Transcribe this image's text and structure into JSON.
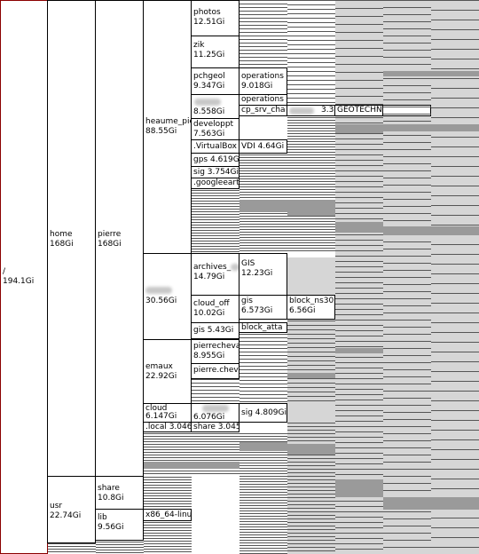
{
  "root": {
    "name": "/",
    "size": "194.1Gi"
  },
  "level1": [
    {
      "name": "home",
      "size": "168Gi"
    },
    {
      "name": "usr",
      "size": "22.74Gi"
    }
  ],
  "level2": [
    {
      "name": "pierre",
      "size": "168Gi"
    },
    {
      "name": "share",
      "size": "10.8Gi"
    },
    {
      "name": "lib",
      "size": "9.56Gi"
    }
  ],
  "level3": [
    {
      "name": "heaume_pie",
      "size": "88.55Gi"
    },
    {
      "name": "",
      "size": "30.56Gi"
    },
    {
      "name": "emaux",
      "size": "22.92Gi"
    },
    {
      "name": "cloud",
      "size": "6.147Gi"
    },
    {
      "name": ".local 3.046",
      "size": ""
    },
    {
      "name": "x86_64-linu",
      "size": ""
    }
  ],
  "level4": [
    {
      "name": "photos",
      "size": "12.51Gi"
    },
    {
      "name": "zik",
      "size": "11.25Gi"
    },
    {
      "name": "pchgeol",
      "size": "9.347Gi"
    },
    {
      "name": "",
      "size": "8.558Gi"
    },
    {
      "name": "developpt",
      "size": "7.563Gi"
    },
    {
      "name": ".VirtualBox",
      "size": ""
    },
    {
      "name": "gps 4.619Gi",
      "size": ""
    },
    {
      "name": "sig 3.754Gi",
      "size": ""
    },
    {
      "name": ".googleeart",
      "size": ""
    },
    {
      "name": "archives_",
      "size": "14.79Gi"
    },
    {
      "name": "cloud_off",
      "size": "10.02Gi"
    },
    {
      "name": "gis 5.43Gi",
      "size": ""
    },
    {
      "name": "pierrecheva",
      "size": "8.955Gi"
    },
    {
      "name": "pierre.chev",
      "size": ""
    },
    {
      "name": "",
      "size": "6.076Gi"
    },
    {
      "name": "share 3.045",
      "size": ""
    }
  ],
  "level5": [
    {
      "name": "operations",
      "size": "9.018Gi"
    },
    {
      "name": "operations",
      "size": ""
    },
    {
      "name": "cp_srv_cha",
      "size": ""
    },
    {
      "name": "VDI 4.64Gi",
      "size": ""
    },
    {
      "name": "GIS",
      "size": "12.23Gi"
    },
    {
      "name": "gis",
      "size": "6.573Gi"
    },
    {
      "name": "block_atta",
      "size": ""
    },
    {
      "name": "sig 4.809Gi",
      "size": ""
    }
  ],
  "level6": [
    {
      "name": "3.3",
      "size": ""
    },
    {
      "name": "block_ns30",
      "size": "6.56Gi"
    }
  ],
  "level7": [
    {
      "name": "GEOTECHN",
      "size": ""
    }
  ]
}
